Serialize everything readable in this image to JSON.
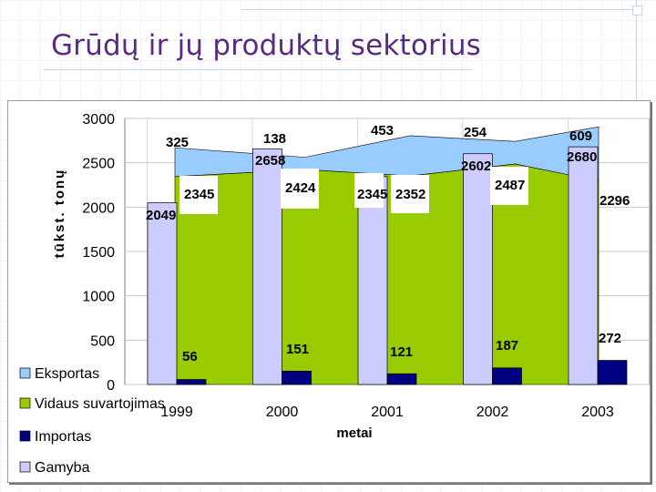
{
  "slide": {
    "title": "Grūdų ir jų produktų sektorius"
  },
  "chart_data": {
    "type": "bar",
    "title": "",
    "xlabel": "metai",
    "ylabel": "tūkst. tonų",
    "ylim": [
      0,
      3000
    ],
    "yticks": [
      0,
      500,
      1000,
      1500,
      2000,
      2500,
      3000
    ],
    "categories": [
      "1999",
      "2000",
      "2001",
      "2002",
      "2003"
    ],
    "series": [
      {
        "name": "Gamyba",
        "kind": "bar",
        "color": "#ccccff",
        "values": [
          2049,
          2658,
          2345,
          2602,
          2680
        ]
      },
      {
        "name": "Vidaus suvartojimas",
        "kind": "area",
        "color": "#99cc00",
        "values": [
          2345,
          2424,
          2352,
          2487,
          2296
        ]
      },
      {
        "name": "Eksportas",
        "kind": "area",
        "color": "#99ccff",
        "values": [
          325,
          138,
          453,
          254,
          609
        ]
      },
      {
        "name": "Importas",
        "kind": "bar",
        "color": "#000080",
        "values": [
          56,
          151,
          121,
          187,
          272
        ]
      }
    ],
    "legend": {
      "placement": "bottom-left",
      "items": [
        "Eksportas",
        "Vidaus suvartojimas",
        "Importas",
        "Gamyba"
      ]
    },
    "grid": true
  }
}
